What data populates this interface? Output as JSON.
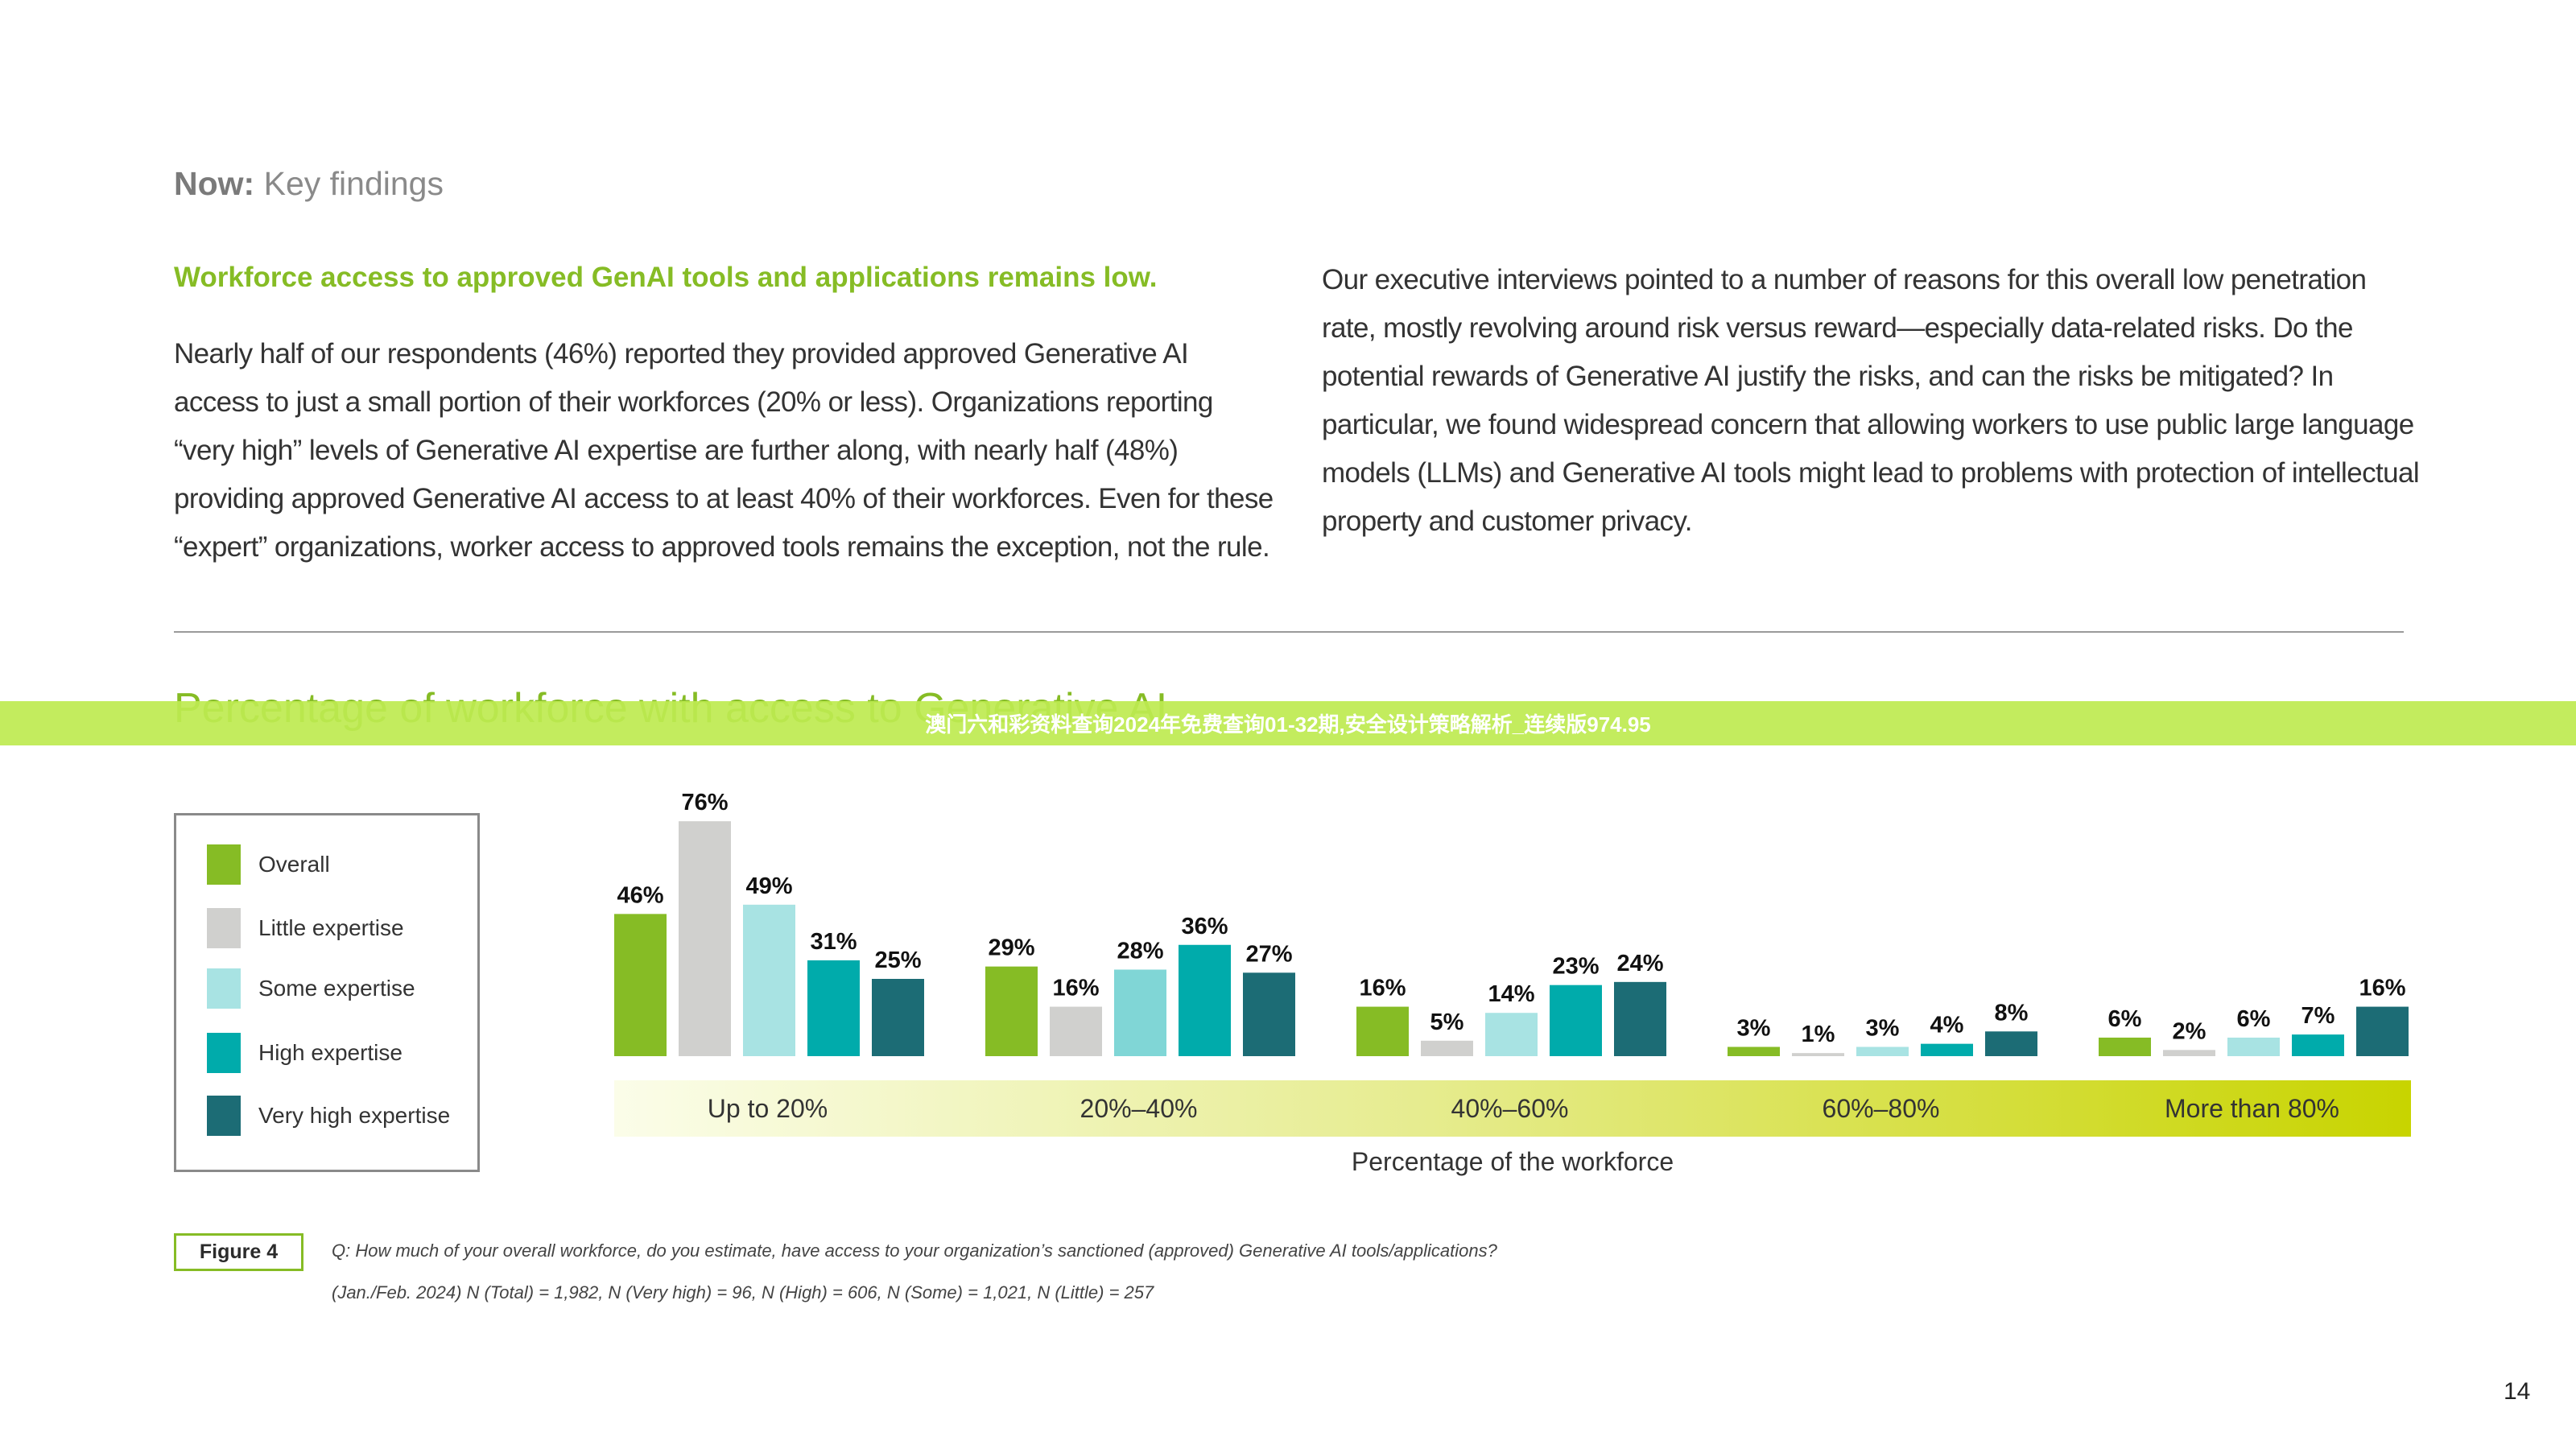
{
  "header": {
    "section_bold": "Now:",
    "section_rest": "Key findings"
  },
  "left": {
    "lead": "Workforce access to approved GenAI tools and applications remains low.",
    "body": "Nearly half of our respondents (46%) reported they provided approved Generative AI access to just a small portion of their workforces (20% or less). Organizations reporting “very high” levels of Generative AI expertise are further along, with nearly half (48%) providing approved Generative AI access to at least 40% of their workforces. Even for these “expert” organizations, worker access to approved tools remains the exception, not the rule."
  },
  "right": {
    "body": "Our executive interviews pointed to a number of reasons for this overall low penetration rate, mostly revolving around risk versus reward—especially data-related risks. Do the potential rewards of Generative AI justify the risks, and can the risks be mitigated? In particular, we found widespread concern that allowing workers to use public large language models (LLMs) and Generative AI tools might lead to problems with protection of intellectual property and customer privacy."
  },
  "banner": {
    "text": "澳门六和彩资料查询2024年免费查询01-32期,安全设计策略解析_连续版974.95",
    "color": "#c4ec5e"
  },
  "chart_data": {
    "type": "bar",
    "title": "Percentage of workforce with access to Generative AI",
    "xlabel": "Percentage of the workforce",
    "categories": [
      "Up to 20%",
      "20%–40%",
      "40%–60%",
      "60%–80%",
      "More than 80%"
    ],
    "legend_position": "left",
    "series": [
      {
        "name": "Overall",
        "color": "#86bc25",
        "values": [
          46,
          29,
          16,
          3,
          6
        ]
      },
      {
        "name": "Little expertise",
        "color": "#d0d0ce",
        "values": [
          76,
          16,
          5,
          1,
          2
        ]
      },
      {
        "name": "Some expertise",
        "color": "#a8e3e3",
        "values": [
          49,
          28,
          14,
          3,
          6
        ]
      },
      {
        "name": "High expertise",
        "color": "#00abab",
        "values": [
          31,
          36,
          23,
          4,
          7
        ]
      },
      {
        "name": "Very high expertise",
        "color": "#1c6c75",
        "values": [
          25,
          27,
          24,
          8,
          16
        ]
      }
    ]
  },
  "figure": {
    "label": "Figure 4",
    "question": "Q: How much of your overall workforce, do you estimate, have access to your organization’s sanctioned (approved) Generative AI tools/applications?",
    "sample": "(Jan./Feb. 2024) N (Total) = 1,982, N (Very high) = 96, N (High) = 606, N (Some) = 1,021, N (Little) = 257"
  },
  "page_number": "14"
}
